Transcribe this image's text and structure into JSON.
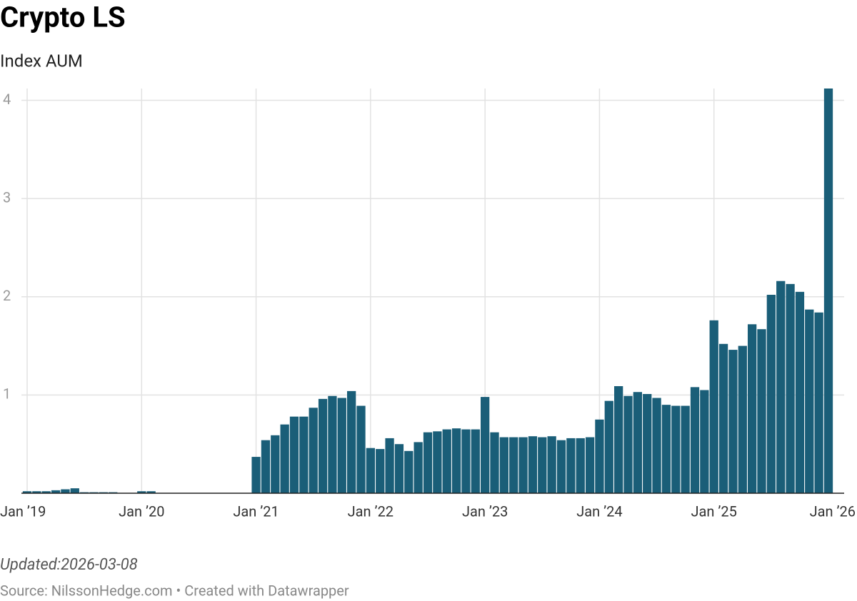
{
  "chart_data": {
    "type": "bar",
    "title": "Crypto LS",
    "subtitle": "Index AUM",
    "note": "Updated:2026-03-08",
    "source": "Source: NilssonHedge.com • Created with Datawrapper",
    "categories": [
      "Jan ’19",
      null,
      null,
      null,
      null,
      null,
      null,
      null,
      null,
      null,
      null,
      null,
      "Jan ’20",
      null,
      null,
      null,
      null,
      null,
      null,
      null,
      null,
      null,
      null,
      null,
      "Jan ’21",
      null,
      null,
      null,
      null,
      null,
      null,
      null,
      null,
      null,
      null,
      null,
      "Jan ’22",
      null,
      null,
      null,
      null,
      null,
      null,
      null,
      null,
      null,
      null,
      null,
      "Jan ’23",
      null,
      null,
      null,
      null,
      null,
      null,
      null,
      null,
      null,
      null,
      null,
      "Jan ’24",
      null,
      null,
      null,
      null,
      null,
      null,
      null,
      null,
      null,
      null,
      null,
      "Jan ’25",
      null,
      null,
      null,
      null,
      null,
      null,
      null,
      null,
      null,
      null,
      null,
      "Jan ’26"
    ],
    "values": [
      0.02,
      0.02,
      0.02,
      0.03,
      0.04,
      0.05,
      0.01,
      0.01,
      0.01,
      0.01,
      0,
      0,
      0.02,
      0.02,
      0,
      0,
      0,
      0,
      0,
      0,
      0,
      0,
      0,
      0,
      0.37,
      0.54,
      0.59,
      0.7,
      0.78,
      0.78,
      0.87,
      0.96,
      0.99,
      0.97,
      1.04,
      0.89,
      0.46,
      0.45,
      0.56,
      0.5,
      0.43,
      0.52,
      0.62,
      0.63,
      0.65,
      0.66,
      0.65,
      0.65,
      0.98,
      0.62,
      0.57,
      0.57,
      0.57,
      0.58,
      0.57,
      0.58,
      0.54,
      0.56,
      0.56,
      0.57,
      0.75,
      0.94,
      1.09,
      0.99,
      1.03,
      1.01,
      0.97,
      0.9,
      0.89,
      0.89,
      1.08,
      1.05,
      1.76,
      1.52,
      1.46,
      1.5,
      1.72,
      1.67,
      2.02,
      2.16,
      2.13,
      2.05,
      1.87,
      1.84,
      4.12
    ],
    "color": "#1a5e78",
    "ylim": [
      0,
      4.12
    ],
    "yticks": [
      1,
      2,
      3,
      4
    ],
    "grid": true
  }
}
